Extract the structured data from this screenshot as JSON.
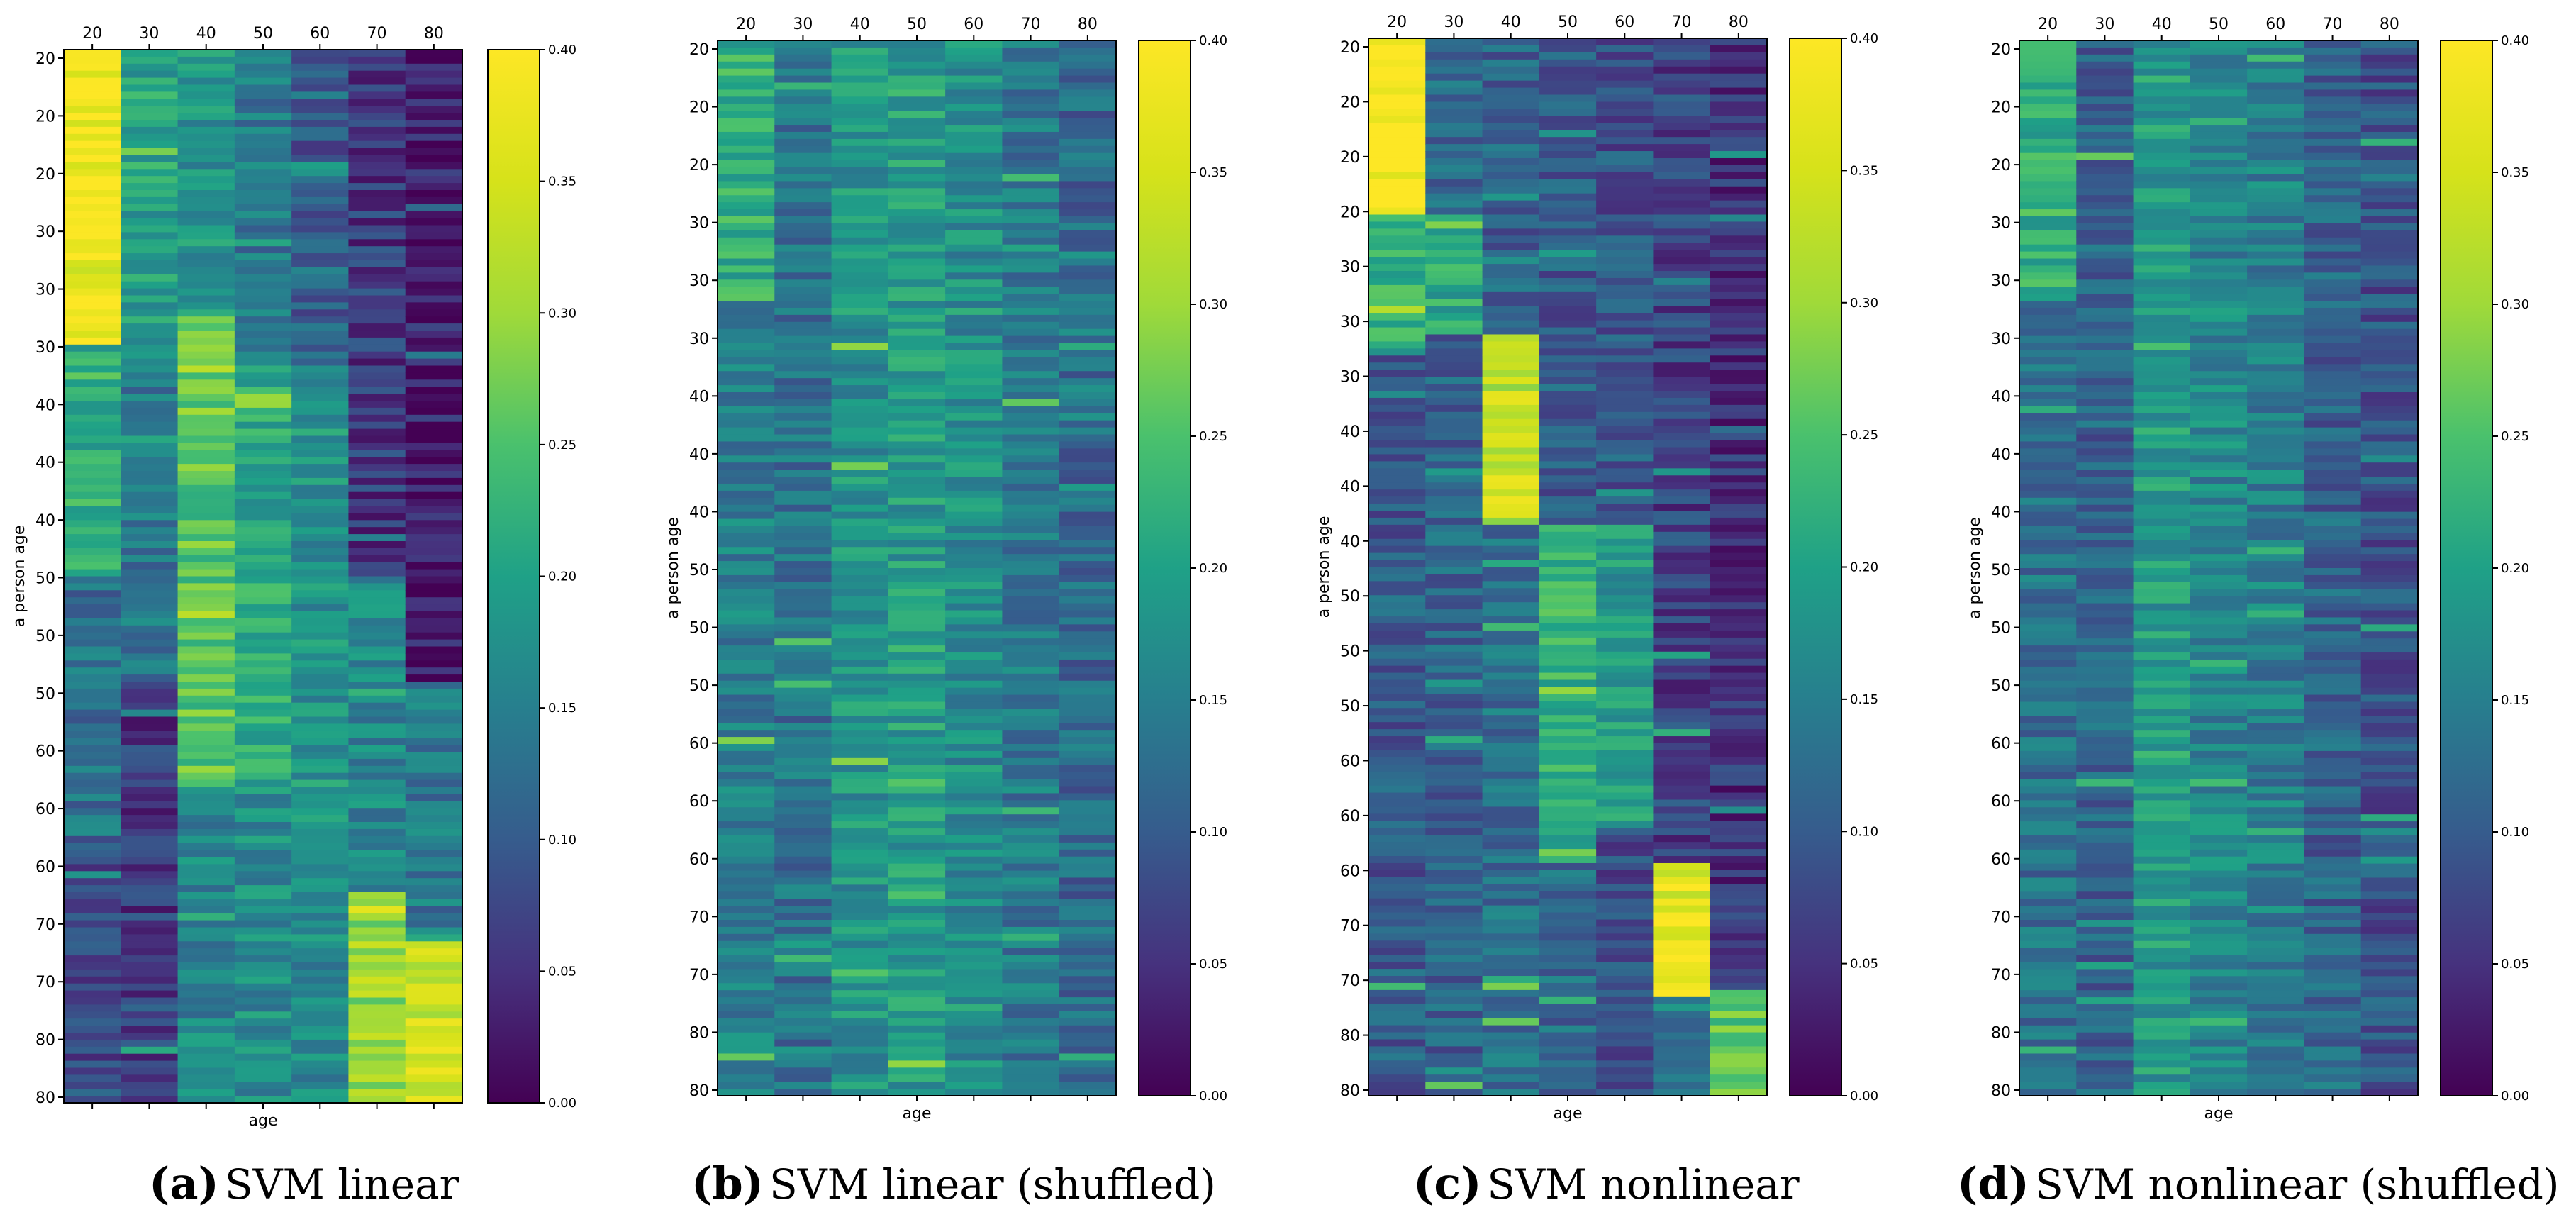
{
  "chart_data": [
    {
      "type": "heatmap",
      "id": "a",
      "caption_letter": "(a)",
      "caption_text": "SVM linear",
      "xlabel": "age",
      "ylabel": "a person age",
      "x_categories": [
        "20",
        "30",
        "40",
        "50",
        "60",
        "70",
        "80"
      ],
      "y_tick_labels": [
        "20",
        "20",
        "20",
        "30",
        "30",
        "30",
        "40",
        "40",
        "40",
        "50",
        "50",
        "50",
        "60",
        "60",
        "60",
        "70",
        "70",
        "80",
        "80"
      ],
      "colorbar": {
        "min": 0.0,
        "max": 0.4,
        "ticks": [
          "0.00",
          "0.05",
          "0.10",
          "0.15",
          "0.20",
          "0.25",
          "0.30",
          "0.35",
          "0.40"
        ]
      },
      "column_profiles": [
        {
          "blocks": [
            [
              0.0,
              0.28,
              0.38
            ],
            [
              0.28,
              0.5,
              0.22
            ],
            [
              0.5,
              0.75,
              0.13
            ],
            [
              0.75,
              1.0,
              0.08
            ]
          ]
        },
        {
          "blocks": [
            [
              0.0,
              0.3,
              0.2
            ],
            [
              0.3,
              0.6,
              0.14
            ],
            [
              0.6,
              1.0,
              0.06
            ]
          ]
        },
        {
          "blocks": [
            [
              0.0,
              0.25,
              0.18
            ],
            [
              0.25,
              0.7,
              0.26
            ],
            [
              0.7,
              1.0,
              0.16
            ]
          ]
        },
        {
          "blocks": [
            [
              0.0,
              0.3,
              0.14
            ],
            [
              0.3,
              0.7,
              0.21
            ],
            [
              0.7,
              1.0,
              0.17
            ]
          ]
        },
        {
          "blocks": [
            [
              0.0,
              0.3,
              0.1
            ],
            [
              0.3,
              0.7,
              0.18
            ],
            [
              0.7,
              1.0,
              0.17
            ]
          ]
        },
        {
          "blocks": [
            [
              0.0,
              0.5,
              0.06
            ],
            [
              0.5,
              0.8,
              0.16
            ],
            [
              0.8,
              1.0,
              0.3
            ]
          ]
        },
        {
          "blocks": [
            [
              0.0,
              0.6,
              0.03
            ],
            [
              0.6,
              0.85,
              0.14
            ],
            [
              0.85,
              1.0,
              0.34
            ]
          ]
        }
      ]
    },
    {
      "type": "heatmap",
      "id": "b",
      "caption_letter": "(b)",
      "caption_text": "SVM linear (shuffled)",
      "xlabel": "age",
      "ylabel": "a person age",
      "x_categories": [
        "20",
        "30",
        "40",
        "50",
        "60",
        "70",
        "80"
      ],
      "y_tick_labels": [
        "20",
        "20",
        "20",
        "30",
        "30",
        "30",
        "40",
        "40",
        "40",
        "50",
        "50",
        "50",
        "60",
        "60",
        "60",
        "70",
        "70",
        "80",
        "80"
      ],
      "colorbar": {
        "min": 0.0,
        "max": 0.4,
        "ticks": [
          "0.00",
          "0.05",
          "0.10",
          "0.15",
          "0.20",
          "0.25",
          "0.30",
          "0.35",
          "0.40"
        ]
      },
      "column_profiles": [
        {
          "blocks": [
            [
              0.0,
              0.25,
              0.22
            ],
            [
              0.25,
              1.0,
              0.15
            ]
          ]
        },
        {
          "blocks": [
            [
              0.0,
              1.0,
              0.13
            ]
          ]
        },
        {
          "blocks": [
            [
              0.0,
              1.0,
              0.18
            ]
          ]
        },
        {
          "blocks": [
            [
              0.0,
              1.0,
              0.19
            ]
          ]
        },
        {
          "blocks": [
            [
              0.0,
              1.0,
              0.17
            ]
          ]
        },
        {
          "blocks": [
            [
              0.0,
              1.0,
              0.14
            ]
          ]
        },
        {
          "blocks": [
            [
              0.0,
              1.0,
              0.12
            ]
          ]
        }
      ]
    },
    {
      "type": "heatmap",
      "id": "c",
      "caption_letter": "(c)",
      "caption_text": "SVM nonlinear",
      "xlabel": "age",
      "ylabel": "a person age",
      "x_categories": [
        "20",
        "30",
        "40",
        "50",
        "60",
        "70",
        "80"
      ],
      "y_tick_labels": [
        "20",
        "20",
        "20",
        "20",
        "30",
        "30",
        "30",
        "40",
        "40",
        "40",
        "50",
        "50",
        "50",
        "60",
        "60",
        "60",
        "70",
        "70",
        "80",
        "80"
      ],
      "colorbar": {
        "min": 0.0,
        "max": 0.4,
        "ticks": [
          "0.00",
          "0.05",
          "0.10",
          "0.15",
          "0.20",
          "0.25",
          "0.30",
          "0.35",
          "0.40"
        ]
      },
      "column_profiles": [
        {
          "blocks": [
            [
              0.0,
              0.17,
              0.4
            ],
            [
              0.17,
              0.3,
              0.22
            ],
            [
              0.3,
              1.0,
              0.1
            ]
          ]
        },
        {
          "blocks": [
            [
              0.0,
              0.17,
              0.12
            ],
            [
              0.17,
              0.28,
              0.21
            ],
            [
              0.28,
              1.0,
              0.11
            ]
          ]
        },
        {
          "blocks": [
            [
              0.0,
              0.28,
              0.11
            ],
            [
              0.28,
              0.46,
              0.33
            ],
            [
              0.46,
              1.0,
              0.13
            ]
          ]
        },
        {
          "blocks": [
            [
              0.0,
              0.46,
              0.1
            ],
            [
              0.46,
              0.78,
              0.22
            ],
            [
              0.78,
              1.0,
              0.12
            ]
          ]
        },
        {
          "blocks": [
            [
              0.0,
              0.46,
              0.09
            ],
            [
              0.46,
              0.75,
              0.19
            ],
            [
              0.75,
              1.0,
              0.08
            ]
          ]
        },
        {
          "blocks": [
            [
              0.0,
              0.78,
              0.07
            ],
            [
              0.78,
              0.91,
              0.37
            ],
            [
              0.91,
              1.0,
              0.14
            ]
          ]
        },
        {
          "blocks": [
            [
              0.0,
              0.9,
              0.05
            ],
            [
              0.9,
              1.0,
              0.26
            ]
          ]
        }
      ]
    },
    {
      "type": "heatmap",
      "id": "d",
      "caption_letter": "(d)",
      "caption_text": "SVM nonlinear (shuffled)",
      "xlabel": "age",
      "ylabel": "a person age",
      "x_categories": [
        "20",
        "30",
        "40",
        "50",
        "60",
        "70",
        "80"
      ],
      "y_tick_labels": [
        "20",
        "20",
        "20",
        "30",
        "30",
        "30",
        "40",
        "40",
        "40",
        "50",
        "50",
        "50",
        "60",
        "60",
        "60",
        "70",
        "70",
        "80",
        "80"
      ],
      "colorbar": {
        "min": 0.0,
        "max": 0.4,
        "ticks": [
          "0.00",
          "0.05",
          "0.10",
          "0.15",
          "0.20",
          "0.25",
          "0.30",
          "0.35",
          "0.40"
        ]
      },
      "column_profiles": [
        {
          "blocks": [
            [
              0.0,
              0.25,
              0.22
            ],
            [
              0.25,
              1.0,
              0.13
            ]
          ]
        },
        {
          "blocks": [
            [
              0.0,
              1.0,
              0.11
            ]
          ]
        },
        {
          "blocks": [
            [
              0.0,
              1.0,
              0.19
            ]
          ]
        },
        {
          "blocks": [
            [
              0.0,
              1.0,
              0.16
            ]
          ]
        },
        {
          "blocks": [
            [
              0.0,
              1.0,
              0.15
            ]
          ]
        },
        {
          "blocks": [
            [
              0.0,
              1.0,
              0.11
            ]
          ]
        },
        {
          "blocks": [
            [
              0.0,
              1.0,
              0.09
            ]
          ]
        }
      ]
    }
  ]
}
